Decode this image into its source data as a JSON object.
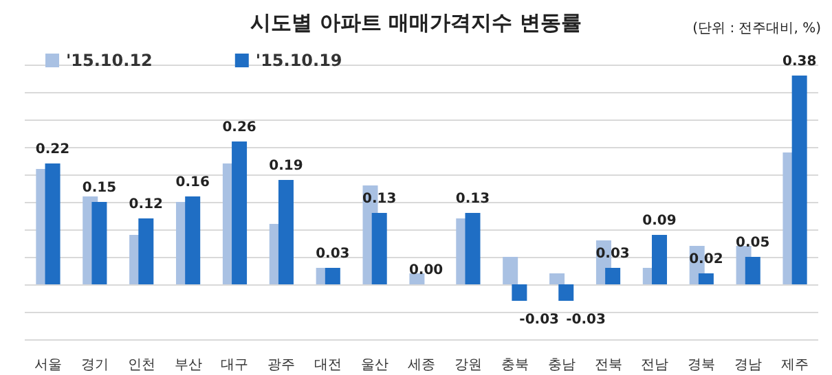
{
  "chart_data": {
    "type": "bar",
    "title": "시도별 아파트 매매가격지수 변동률",
    "annotations": [
      "(단위 : 전주대비, %)"
    ],
    "categories": [
      "서울",
      "경기",
      "인천",
      "부산",
      "대구",
      "광주",
      "대전",
      "울산",
      "세종",
      "강원",
      "충북",
      "충남",
      "전북",
      "전남",
      "경북",
      "경남",
      "제주"
    ],
    "series": [
      {
        "name": "'15.10.12",
        "color": "#a9c1e3",
        "values": [
          0.21,
          0.16,
          0.09,
          0.15,
          0.22,
          0.11,
          0.03,
          0.18,
          0.02,
          0.12,
          0.05,
          0.02,
          0.08,
          0.03,
          0.07,
          0.07,
          0.24
        ]
      },
      {
        "name": "'15.10.19",
        "color": "#1f6ec4",
        "values": [
          0.22,
          0.15,
          0.12,
          0.16,
          0.26,
          0.19,
          0.03,
          0.13,
          0.0,
          0.13,
          -0.03,
          -0.03,
          0.03,
          0.09,
          0.02,
          0.05,
          0.38
        ],
        "value_labels": [
          "0.22",
          "0.15",
          "0.12",
          "0.16",
          "0.26",
          "0.19",
          "0.03",
          "0.13",
          "0.00",
          "0.13",
          "-0.03",
          "-0.03",
          "0.03",
          "0.09",
          "0.02",
          "0.05",
          "0.38"
        ]
      }
    ],
    "ylim": [
      -0.1,
      0.4
    ],
    "yticks": [
      {
        "value": -0.1,
        "label": null
      },
      {
        "value": -0.05,
        "label": null
      },
      {
        "value": 0,
        "label": null
      },
      {
        "value": 0.05,
        "label": null
      },
      {
        "value": 0.1,
        "label": null
      },
      {
        "value": 0.15,
        "label": null
      },
      {
        "value": 0.2,
        "label": null
      },
      {
        "value": 0.25,
        "label": null
      },
      {
        "value": 0.3,
        "label": null
      },
      {
        "value": 0.35,
        "label": null
      },
      {
        "value": 0.4,
        "label": null
      }
    ],
    "grid": "y",
    "legend": "top left",
    "tick_labels": "x"
  }
}
